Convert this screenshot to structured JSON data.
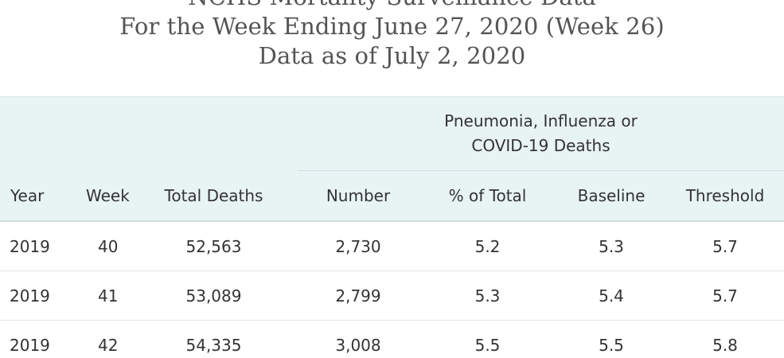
{
  "title": {
    "line1": "NCHS Mortality Surveillance Data",
    "line2": "For the Week Ending June 27, 2020 (Week 26)",
    "line3": "Data as of July 2, 2020"
  },
  "table": {
    "group_header": {
      "line1": "Pneumonia, Influenza or",
      "line2": "COVID-19 Deaths"
    },
    "columns": [
      "Year",
      "Week",
      "Total Deaths",
      "Number",
      "% of Total",
      "Baseline",
      "Threshold"
    ],
    "rows": [
      [
        "2019",
        "40",
        "52,563",
        "2,730",
        "5.2",
        "5.3",
        "5.7"
      ],
      [
        "2019",
        "41",
        "53,089",
        "2,799",
        "5.3",
        "5.4",
        "5.7"
      ],
      [
        "2019",
        "42",
        "54,335",
        "3,008",
        "5.5",
        "5.5",
        "5.8"
      ]
    ]
  }
}
